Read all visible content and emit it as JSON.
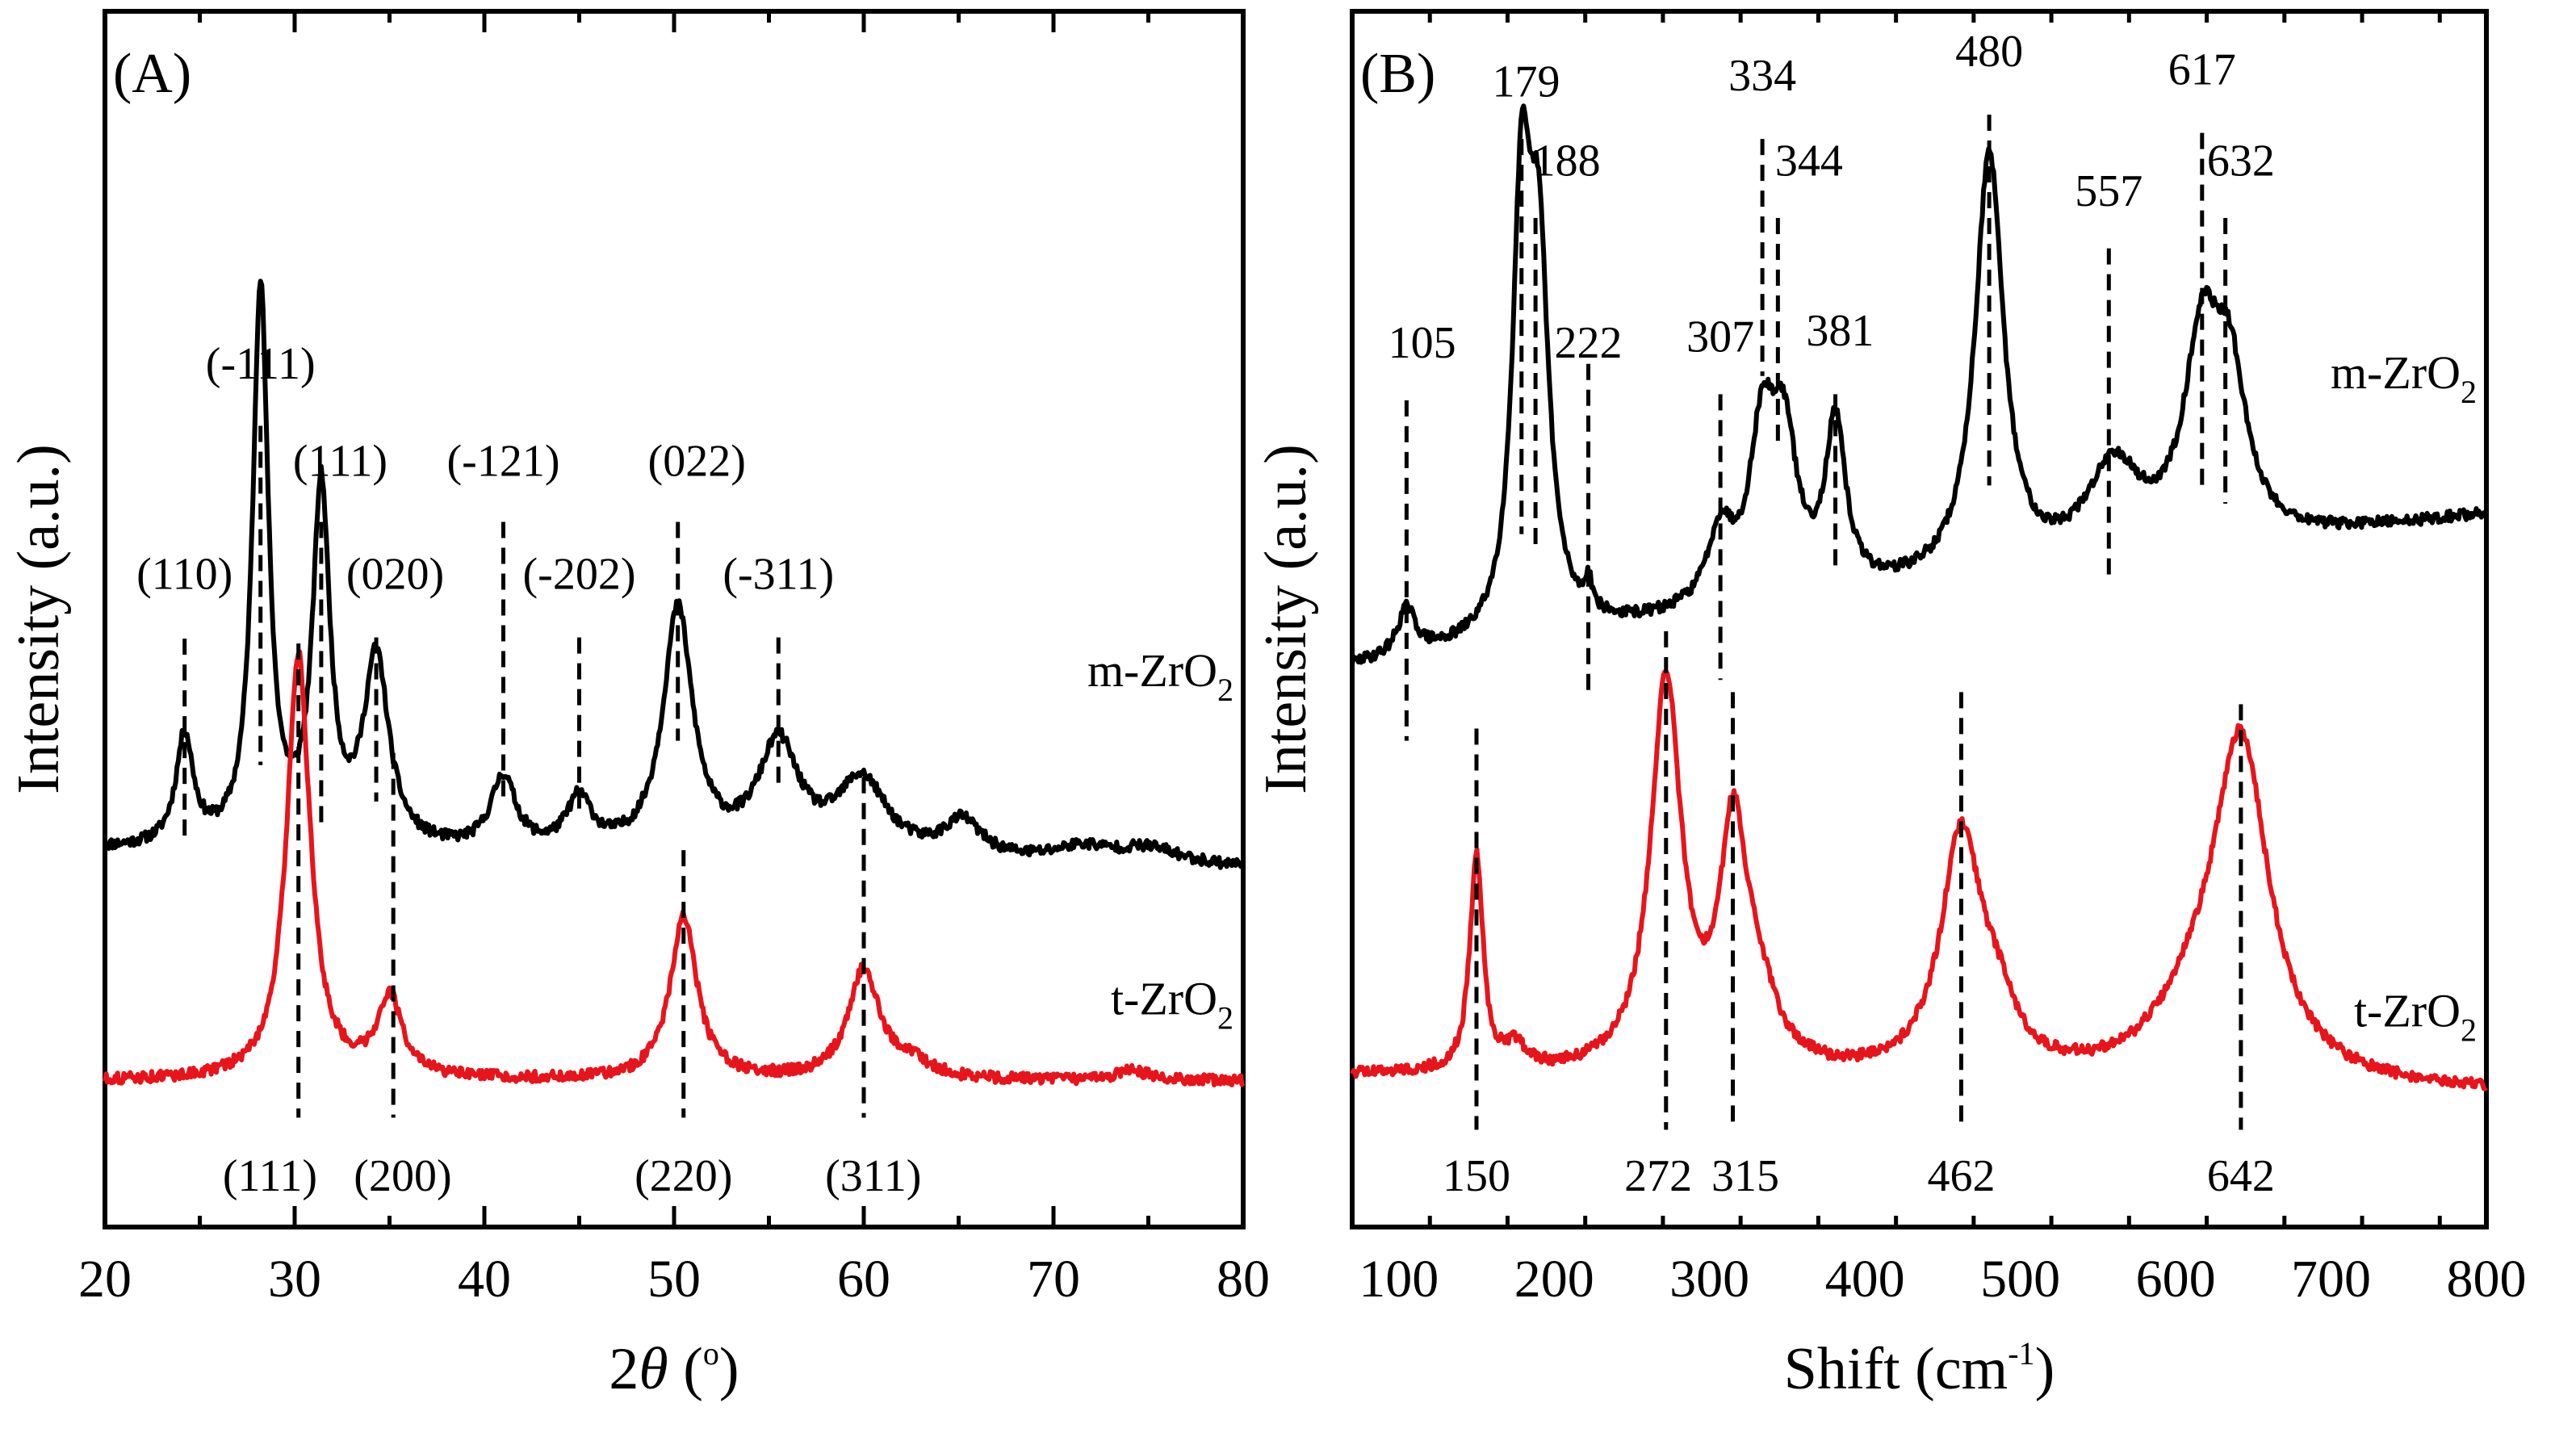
{
  "chart_data": [
    {
      "type": "line",
      "panel": "(A)",
      "xlabel": "2θ (°)",
      "xlabel_theta": "θ",
      "xlabel_deg": "o",
      "ylabel": "Intensity (a.u.)",
      "xlim": [
        20,
        80
      ],
      "ylim": [
        0,
        10
      ],
      "xticks": [
        20,
        30,
        40,
        50,
        60,
        70,
        80
      ],
      "xtick_labels": [
        "20",
        "30",
        "40",
        "50",
        "60",
        "70",
        "80"
      ],
      "series": [
        {
          "name": "m-ZrO2",
          "label_main": "m-ZrO",
          "label_sub": "2",
          "color": "#000000",
          "baseline": 3.1,
          "end_baseline": 2.95,
          "peaks": [
            [
              24.2,
              0.9,
              0.55
            ],
            [
              28.2,
              4.6,
              0.5
            ],
            [
              31.4,
              2.9,
              0.55
            ],
            [
              34.3,
              1.55,
              0.8
            ],
            [
              41.0,
              0.6,
              0.8
            ],
            [
              45.0,
              0.42,
              0.8
            ],
            [
              50.2,
              2.0,
              0.95
            ],
            [
              55.5,
              0.9,
              1.3
            ],
            [
              59.9,
              0.62,
              1.6
            ],
            [
              65.2,
              0.3,
              1.2
            ],
            [
              71.5,
              0.12,
              1.8
            ],
            [
              75.0,
              0.13,
              2.0
            ]
          ],
          "annotations": [
            {
              "x": 24.2,
              "text": "(110)",
              "line_top": 4.84,
              "line_bottom": 3.2,
              "label_y": 5.25,
              "dx": 0
            },
            {
              "x": 28.2,
              "text": "(-111)",
              "line_top": 6.59,
              "line_bottom": 3.8,
              "label_y": 6.98,
              "dx": 0
            },
            {
              "x": 31.4,
              "text": "(111)",
              "line_top": 5.8,
              "line_bottom": 3.3,
              "label_y": 6.18,
              "dx": 1
            },
            {
              "x": 34.3,
              "text": "(020)",
              "line_top": 4.85,
              "line_bottom": 3.5,
              "label_y": 5.25,
              "dx": 1
            },
            {
              "x": 41.0,
              "text": "(-121)",
              "line_top": 5.8,
              "line_bottom": 3.5,
              "label_y": 6.18,
              "dx": 0
            },
            {
              "x": 45.0,
              "text": "(-202)",
              "line_top": 4.85,
              "line_bottom": 3.4,
              "label_y": 5.25,
              "dx": 0
            },
            {
              "x": 50.2,
              "text": "(022)",
              "line_top": 5.8,
              "line_bottom": 4.0,
              "label_y": 6.18,
              "dx": 1
            },
            {
              "x": 55.5,
              "text": "(-311)",
              "line_top": 4.85,
              "line_bottom": 3.6,
              "label_y": 5.25,
              "dx": 0
            }
          ]
        },
        {
          "name": "t-ZrO2",
          "label_main": "t-ZrO",
          "label_sub": "2",
          "color": "#e8141b",
          "baseline": 1.2,
          "end_baseline": 1.2,
          "peaks": [
            [
              30.2,
              3.5,
              0.75
            ],
            [
              35.0,
              0.65,
              0.8
            ],
            [
              50.5,
              1.35,
              0.85
            ],
            [
              60.0,
              0.9,
              1.0
            ],
            [
              62.5,
              0.12,
              1.2
            ],
            [
              74.2,
              0.08,
              1.0
            ]
          ],
          "annotations": [
            {
              "x": 30.2,
              "text": "(111)",
              "line_top": 4.8,
              "line_bottom": 0.9,
              "label_y": 0.3,
              "dx": -1.5
            },
            {
              "x": 35.2,
              "text": "(200)",
              "line_top": 3.9,
              "line_bottom": 0.9,
              "label_y": 0.3,
              "dx": 0.5
            },
            {
              "x": 50.5,
              "text": "(220)",
              "line_top": 3.1,
              "line_bottom": 0.9,
              "label_y": 0.3,
              "dx": 0
            },
            {
              "x": 60.0,
              "text": "(311)",
              "line_top": 3.7,
              "line_bottom": 0.9,
              "label_y": 0.3,
              "dx": 0.5
            }
          ]
        }
      ]
    },
    {
      "type": "line",
      "panel": "(B)",
      "xlabel": "Shift (cm-1)",
      "xlabel_main": "Shift (cm",
      "xlabel_sup": "-1",
      "xlabel_close": ")",
      "ylabel": "Intensity (a.u.)",
      "xlim": [
        70,
        800
      ],
      "ylim": [
        0,
        10
      ],
      "xticks": [
        100,
        200,
        300,
        400,
        500,
        600,
        700,
        800
      ],
      "xtick_labels": [
        "100",
        "200",
        "300",
        "400",
        "500",
        "600",
        "700",
        "800"
      ],
      "series": [
        {
          "name": "m-ZrO2",
          "label_main": "m-ZrO",
          "label_sub": "2",
          "color": "#000000",
          "baseline": 4.6,
          "end_baseline": 5.85,
          "peaks": [
            [
              105,
              0.38,
              7
            ],
            [
              179,
              3.3,
              7
            ],
            [
              190,
              2.9,
              8
            ],
            [
              222,
              0.25,
              3
            ],
            [
              307,
              0.6,
              10
            ],
            [
              334,
              1.3,
              10
            ],
            [
              348,
              1.2,
              10
            ],
            [
              381,
              1.35,
              8
            ],
            [
              480,
              3.45,
              11
            ],
            [
              560,
              0.75,
              20
            ],
            [
              617,
              1.6,
              14
            ],
            [
              635,
              1.2,
              13
            ]
          ],
          "annotations": [
            {
              "x": 105,
              "text": "105",
              "line_top": 6.8,
              "line_bottom": 4.0,
              "label_y": 7.15,
              "dx": 10
            },
            {
              "x": 179,
              "text": "179",
              "line_top": 8.95,
              "line_bottom": 5.7,
              "label_y": 9.3,
              "dx": 3
            },
            {
              "x": 188,
              "text": "188",
              "line_top": 8.3,
              "line_bottom": 5.6,
              "label_y": 8.65,
              "dx": 20
            },
            {
              "x": 222,
              "text": "222",
              "line_top": 7.1,
              "line_bottom": 4.4,
              "label_y": 7.15,
              "dx": 0
            },
            {
              "x": 307,
              "text": "307",
              "line_top": 6.85,
              "line_bottom": 4.5,
              "label_y": 7.2,
              "dx": 0
            },
            {
              "x": 334,
              "text": "334",
              "line_top": 8.95,
              "line_bottom": 7.0,
              "label_y": 9.35,
              "dx": 0
            },
            {
              "x": 344,
              "text": "344",
              "line_top": 8.3,
              "line_bottom": 6.4,
              "label_y": 8.65,
              "dx": 20
            },
            {
              "x": 381,
              "text": "381",
              "line_top": 6.85,
              "line_bottom": 5.4,
              "label_y": 7.25,
              "dx": 3
            },
            {
              "x": 480,
              "text": "480",
              "line_top": 9.15,
              "line_bottom": 6.1,
              "label_y": 9.55,
              "dx": 0
            },
            {
              "x": 557,
              "text": "557",
              "line_top": 8.05,
              "line_bottom": 5.3,
              "label_y": 8.4,
              "dx": 0
            },
            {
              "x": 617,
              "text": "617",
              "line_top": 9.0,
              "line_bottom": 6.1,
              "label_y": 9.4,
              "dx": 0
            },
            {
              "x": 632,
              "text": "632",
              "line_top": 8.3,
              "line_bottom": 5.95,
              "label_y": 8.65,
              "dx": 10
            }
          ]
        },
        {
          "name": "t-ZrO2",
          "label_main": "t-ZrO",
          "label_sub": "2",
          "color": "#e8141b",
          "baseline": 1.25,
          "end_baseline": 1.1,
          "peaks": [
            [
              150,
              1.8,
              5
            ],
            [
              175,
              0.2,
              8
            ],
            [
              272,
              3.2,
              12
            ],
            [
              315,
              1.8,
              10
            ],
            [
              330,
              0.6,
              15
            ],
            [
              462,
              1.95,
              16
            ],
            [
              485,
              0.4,
              15
            ],
            [
              642,
              2.75,
              22
            ],
            [
              610,
              0.4,
              30
            ]
          ],
          "annotations": [
            {
              "x": 150,
              "text": "150",
              "line_top": 4.1,
              "line_bottom": 0.8,
              "label_y": 0.3,
              "dx": 0
            },
            {
              "x": 272,
              "text": "272",
              "line_top": 4.9,
              "line_bottom": 0.8,
              "label_y": 0.3,
              "dx": -5
            },
            {
              "x": 315,
              "text": "315",
              "line_top": 4.4,
              "line_bottom": 0.8,
              "label_y": 0.3,
              "dx": 8
            },
            {
              "x": 462,
              "text": "462",
              "line_top": 4.4,
              "line_bottom": 0.8,
              "label_y": 0.3,
              "dx": 0
            },
            {
              "x": 642,
              "text": "642",
              "line_top": 4.3,
              "line_bottom": 0.8,
              "label_y": 0.3,
              "dx": 0
            }
          ]
        }
      ]
    }
  ]
}
